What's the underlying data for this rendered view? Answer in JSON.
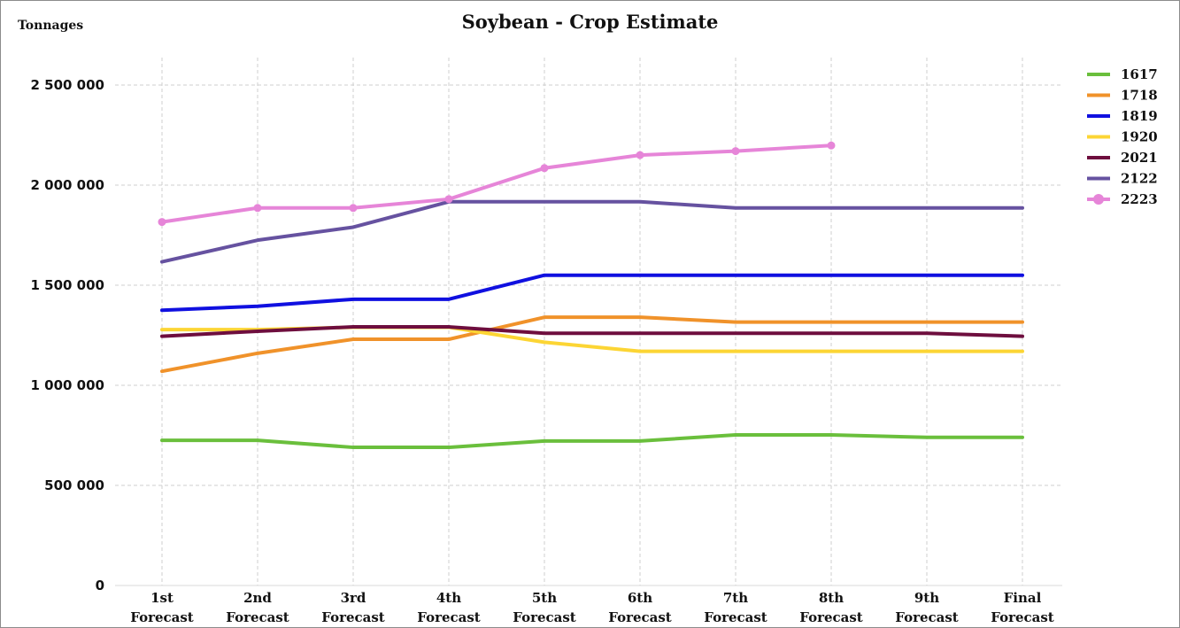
{
  "chart_data": {
    "type": "line",
    "title": "Soybean - Crop Estimate",
    "ylabel": "Tonnages",
    "xlabel": "",
    "categories": [
      [
        "1st",
        "Forecast"
      ],
      [
        "2nd",
        "Forecast"
      ],
      [
        "3rd",
        "Forecast"
      ],
      [
        "4th",
        "Forecast"
      ],
      [
        "5th",
        "Forecast"
      ],
      [
        "6th",
        "Forecast"
      ],
      [
        "7th",
        "Forecast"
      ],
      [
        "8th",
        "Forecast"
      ],
      [
        "9th",
        "Forecast"
      ],
      [
        "Final",
        "Forecast"
      ]
    ],
    "ylim": [
      0,
      2500000
    ],
    "yticks": [
      0,
      500000,
      1000000,
      1500000,
      2000000,
      2500000
    ],
    "ytick_labels": [
      "0",
      "500 000",
      "1 000 000",
      "1 500 000",
      "2 000 000",
      "2 500 000"
    ],
    "grid": true,
    "legend_position": "right",
    "series": [
      {
        "name": "1617",
        "color": "#6abf3c",
        "markers": false,
        "values": [
          725000,
          725000,
          690000,
          690000,
          722000,
          722000,
          752000,
          752000,
          740000,
          740000
        ]
      },
      {
        "name": "1718",
        "color": "#f0922a",
        "markers": false,
        "values": [
          1070000,
          1160000,
          1230000,
          1230000,
          1340000,
          1340000,
          1316000,
          1316000,
          1316000,
          1316000
        ]
      },
      {
        "name": "1819",
        "color": "#1010e0",
        "markers": false,
        "values": [
          1375000,
          1395000,
          1430000,
          1430000,
          1550000,
          1550000,
          1550000,
          1550000,
          1550000,
          1550000
        ]
      },
      {
        "name": "1920",
        "color": "#fcd534",
        "markers": false,
        "values": [
          1278000,
          1278000,
          1290000,
          1290000,
          1215000,
          1170000,
          1170000,
          1170000,
          1170000,
          1170000
        ]
      },
      {
        "name": "2021",
        "color": "#6e0e3e",
        "markers": false,
        "values": [
          1245000,
          1270000,
          1292000,
          1292000,
          1260000,
          1260000,
          1260000,
          1260000,
          1260000,
          1245000
        ]
      },
      {
        "name": "2122",
        "color": "#6652a0",
        "markers": false,
        "values": [
          1617000,
          1725000,
          1790000,
          1917000,
          1917000,
          1917000,
          1886000,
          1886000,
          1886000,
          1886000
        ]
      },
      {
        "name": "2223",
        "color": "#e685d8",
        "markers": true,
        "values": [
          1816000,
          1886000,
          1886000,
          1930000,
          2085000,
          2150000,
          2170000,
          2198000,
          null,
          null
        ]
      }
    ]
  }
}
